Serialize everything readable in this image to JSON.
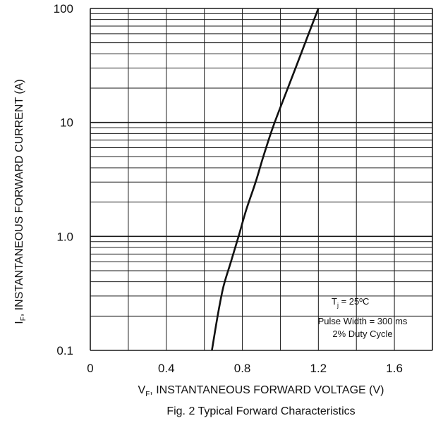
{
  "chart_data": {
    "type": "line",
    "title": "Fig. 2  Typical Forward Characteristics",
    "xlabel": {
      "main": "V",
      "sub": "F",
      "rest": ", INSTANTANEOUS FORWARD VOLTAGE (V)"
    },
    "ylabel": {
      "main": "I",
      "sub": "F",
      "rest": ", INSTANTANEOUS FORWARD CURRENT (A)"
    },
    "xlim": [
      0,
      1.8
    ],
    "ylim": [
      0.1,
      100
    ],
    "yscale": "log",
    "x_ticks": [
      "0",
      "0.4",
      "0.8",
      "1.2",
      "1.6"
    ],
    "y_ticks": [
      "0.1",
      "1.0",
      "10",
      "100"
    ],
    "grid": true,
    "series": [
      {
        "points": [
          {
            "x": 0.64,
            "y": 0.1
          },
          {
            "x": 0.67,
            "y": 0.2
          },
          {
            "x": 0.7,
            "y": 0.36
          },
          {
            "x": 0.74,
            "y": 0.6
          },
          {
            "x": 0.78,
            "y": 1.0
          },
          {
            "x": 0.82,
            "y": 1.7
          },
          {
            "x": 0.87,
            "y": 3.0
          },
          {
            "x": 0.91,
            "y": 5.0
          },
          {
            "x": 0.96,
            "y": 9.0
          },
          {
            "x": 1.02,
            "y": 16.5
          },
          {
            "x": 1.08,
            "y": 30.0
          },
          {
            "x": 1.14,
            "y": 55.0
          },
          {
            "x": 1.2,
            "y": 100.0
          }
        ]
      }
    ],
    "annotations": {
      "tj_main": "T",
      "tj_sub": "j",
      "tj_rest": " = 25ºC",
      "pulse": "Pulse Width = 300 ms",
      "duty": "2% Duty Cycle"
    }
  }
}
